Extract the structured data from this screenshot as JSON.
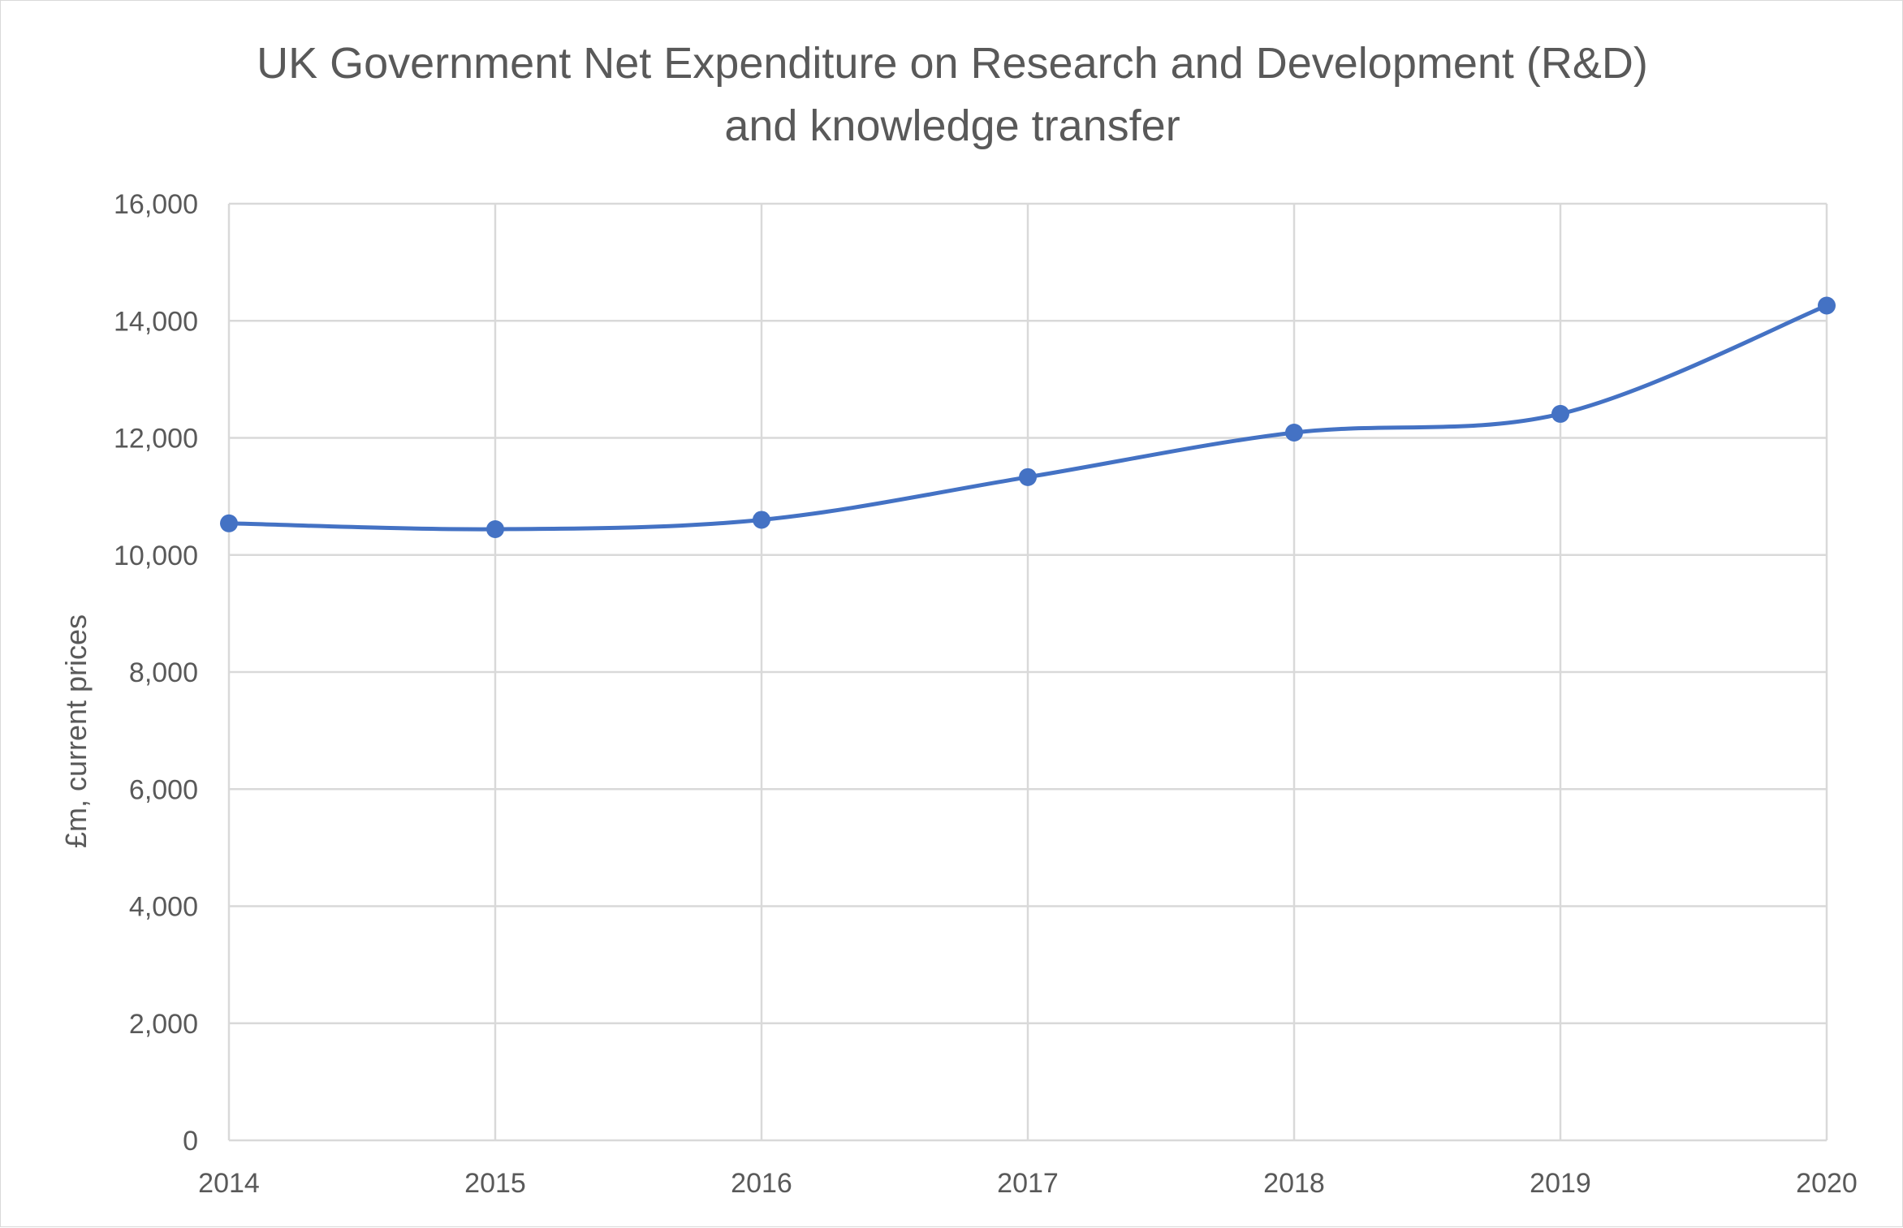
{
  "chart_data": {
    "type": "line",
    "title_lines": [
      "UK Government Net Expenditure on Research and Development (R&D)",
      "and knowledge transfer"
    ],
    "xlabel": "",
    "ylabel": "£m, current prices",
    "categories": [
      "2014",
      "2015",
      "2016",
      "2017",
      "2018",
      "2019",
      "2020"
    ],
    "y_tick_labels": [
      "0",
      "2,000",
      "4,000",
      "6,000",
      "8,000",
      "10,000",
      "12,000",
      "14,000",
      "16,000"
    ],
    "y_ticks": [
      0,
      2000,
      4000,
      6000,
      8000,
      10000,
      12000,
      14000,
      16000
    ],
    "ylim": [
      0,
      16000
    ],
    "grid": true,
    "smooth": true,
    "series": [
      {
        "values": [
          10540,
          10440,
          10600,
          11330,
          12090,
          12410,
          14260
        ],
        "color": "#4472c4"
      }
    ]
  }
}
